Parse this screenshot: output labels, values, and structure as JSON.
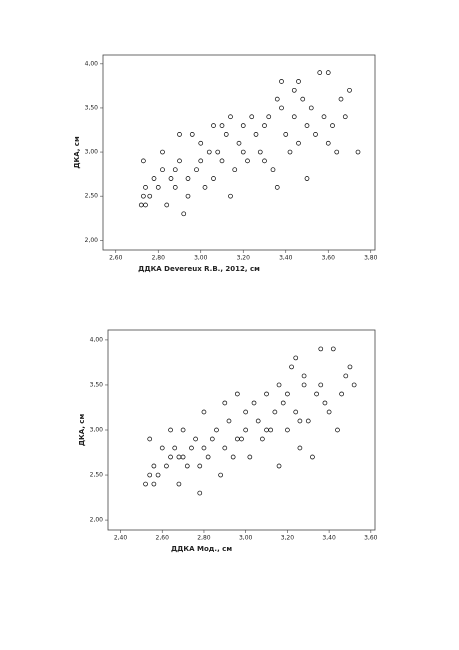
{
  "chart_data": [
    {
      "type": "scatter",
      "x_label": "ДДКА Devereux R.B., 2012, см",
      "y_label": "ДКА, см",
      "color": "#000000",
      "xlim": [
        2.54,
        3.82
      ],
      "ylim": [
        1.89,
        4.1
      ],
      "xticks": [
        {
          "value": 2.6,
          "label": "2,60"
        },
        {
          "value": 2.8,
          "label": "2,80"
        },
        {
          "value": 3.0,
          "label": "3,00"
        },
        {
          "value": 3.2,
          "label": "3,20"
        },
        {
          "value": 3.4,
          "label": "3,40"
        },
        {
          "value": 3.6,
          "label": "3,60"
        },
        {
          "value": 3.8,
          "label": "3,80"
        }
      ],
      "yticks": [
        {
          "value": 2.0,
          "label": "2,00"
        },
        {
          "value": 2.5,
          "label": "2,50"
        },
        {
          "value": 3.0,
          "label": "3,00"
        },
        {
          "value": 3.5,
          "label": "3,50"
        },
        {
          "value": 4.0,
          "label": "4,00"
        }
      ],
      "x": [
        2.72,
        2.74,
        2.73,
        2.76,
        2.74,
        2.73,
        2.78,
        2.8,
        2.82,
        2.84,
        2.82,
        2.86,
        2.88,
        2.88,
        2.9,
        2.92,
        2.94,
        2.94,
        2.96,
        2.98,
        3.0,
        3.0,
        3.02,
        3.04,
        3.06,
        3.06,
        3.08,
        3.1,
        3.12,
        3.14,
        3.14,
        3.16,
        3.18,
        3.2,
        3.2,
        3.22,
        3.24,
        3.26,
        3.28,
        3.3,
        3.32,
        3.34,
        3.36,
        3.36,
        3.38,
        3.38,
        3.4,
        3.42,
        3.44,
        3.46,
        3.46,
        3.48,
        3.5,
        3.5,
        3.52,
        3.54,
        3.56,
        3.58,
        3.6,
        3.6,
        3.62,
        3.64,
        3.66,
        3.68,
        3.7,
        3.74,
        2.9,
        3.1,
        3.3,
        3.44
      ],
      "values": [
        2.4,
        2.4,
        2.5,
        2.5,
        2.6,
        2.9,
        2.7,
        2.6,
        2.8,
        2.4,
        3.0,
        2.7,
        2.6,
        2.8,
        2.9,
        2.3,
        2.5,
        2.7,
        3.2,
        2.8,
        2.9,
        3.1,
        2.6,
        3.0,
        3.3,
        2.7,
        3.0,
        2.9,
        3.2,
        2.5,
        3.4,
        2.8,
        3.1,
        3.0,
        3.3,
        2.9,
        3.4,
        3.2,
        3.0,
        3.3,
        3.4,
        2.8,
        2.6,
        3.6,
        3.8,
        3.5,
        3.2,
        3.0,
        3.4,
        3.8,
        3.1,
        3.6,
        2.7,
        3.3,
        3.5,
        3.2,
        3.9,
        3.4,
        3.9,
        3.1,
        3.3,
        3.0,
        3.6,
        3.4,
        3.7,
        3.0,
        3.2,
        3.3,
        2.9,
        3.7
      ]
    },
    {
      "type": "scatter",
      "x_label": "ДДКА Мод., см",
      "y_label": "ДКА, см",
      "color": "#000000",
      "xlim": [
        2.34,
        3.62
      ],
      "ylim": [
        1.89,
        4.11
      ],
      "xticks": [
        {
          "value": 2.4,
          "label": "2,40"
        },
        {
          "value": 2.6,
          "label": "2,60"
        },
        {
          "value": 2.8,
          "label": "2,80"
        },
        {
          "value": 3.0,
          "label": "3,00"
        },
        {
          "value": 3.2,
          "label": "3,20"
        },
        {
          "value": 3.4,
          "label": "3,40"
        },
        {
          "value": 3.6,
          "label": "3,60"
        }
      ],
      "yticks": [
        {
          "value": 2.0,
          "label": "2,00"
        },
        {
          "value": 2.5,
          "label": "2,50"
        },
        {
          "value": 3.0,
          "label": "3,00"
        },
        {
          "value": 3.5,
          "label": "3,50"
        },
        {
          "value": 4.0,
          "label": "4,00"
        }
      ],
      "x": [
        2.52,
        2.54,
        2.54,
        2.56,
        2.56,
        2.58,
        2.6,
        2.62,
        2.64,
        2.64,
        2.66,
        2.68,
        2.7,
        2.7,
        2.72,
        2.74,
        2.76,
        2.78,
        2.78,
        2.8,
        2.82,
        2.84,
        2.86,
        2.88,
        2.9,
        2.9,
        2.92,
        2.94,
        2.96,
        2.98,
        3.0,
        3.0,
        3.02,
        3.04,
        3.06,
        3.08,
        3.1,
        3.12,
        3.14,
        3.16,
        3.16,
        3.18,
        3.2,
        3.2,
        3.22,
        3.24,
        3.24,
        3.26,
        3.28,
        3.28,
        3.3,
        3.32,
        3.34,
        3.36,
        3.38,
        3.4,
        3.42,
        3.44,
        3.46,
        3.48,
        3.5,
        3.52,
        2.8,
        3.1,
        2.68,
        2.96,
        3.26,
        3.36
      ],
      "values": [
        2.4,
        2.5,
        2.9,
        2.4,
        2.6,
        2.5,
        2.8,
        2.6,
        2.7,
        3.0,
        2.8,
        2.4,
        2.7,
        3.0,
        2.6,
        2.8,
        2.9,
        2.3,
        2.6,
        3.2,
        2.7,
        2.9,
        3.0,
        2.5,
        2.8,
        3.3,
        3.1,
        2.7,
        3.4,
        2.9,
        3.0,
        3.2,
        2.7,
        3.3,
        3.1,
        2.9,
        3.4,
        3.0,
        3.2,
        2.6,
        3.5,
        3.3,
        3.0,
        3.4,
        3.7,
        3.8,
        3.2,
        2.8,
        3.5,
        3.6,
        3.1,
        2.7,
        3.4,
        3.9,
        3.3,
        3.2,
        3.9,
        3.0,
        3.4,
        3.6,
        3.7,
        3.5,
        2.8,
        3.0,
        2.7,
        2.9,
        3.1,
        3.5
      ]
    }
  ]
}
